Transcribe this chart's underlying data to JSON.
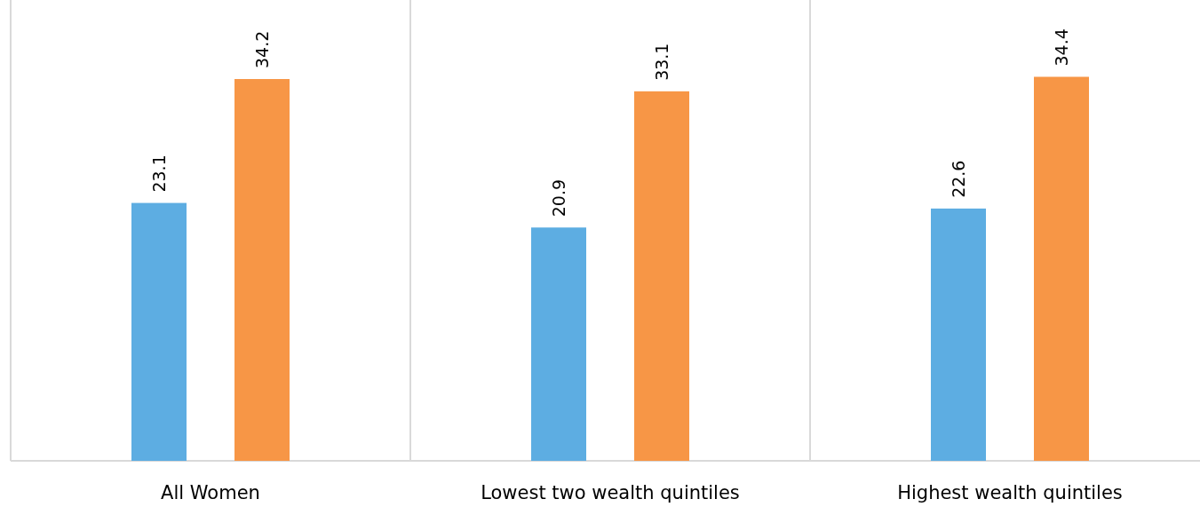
{
  "chart_data": {
    "type": "bar",
    "categories": [
      "All Women",
      "Lowest two wealth quintiles",
      "Highest wealth quintiles"
    ],
    "series": [
      {
        "color": "#5dade2",
        "values": [
          23.1,
          20.9,
          22.6
        ]
      },
      {
        "color": "#f79646",
        "values": [
          34.2,
          33.1,
          34.4
        ]
      }
    ],
    "data_labels": true
  }
}
